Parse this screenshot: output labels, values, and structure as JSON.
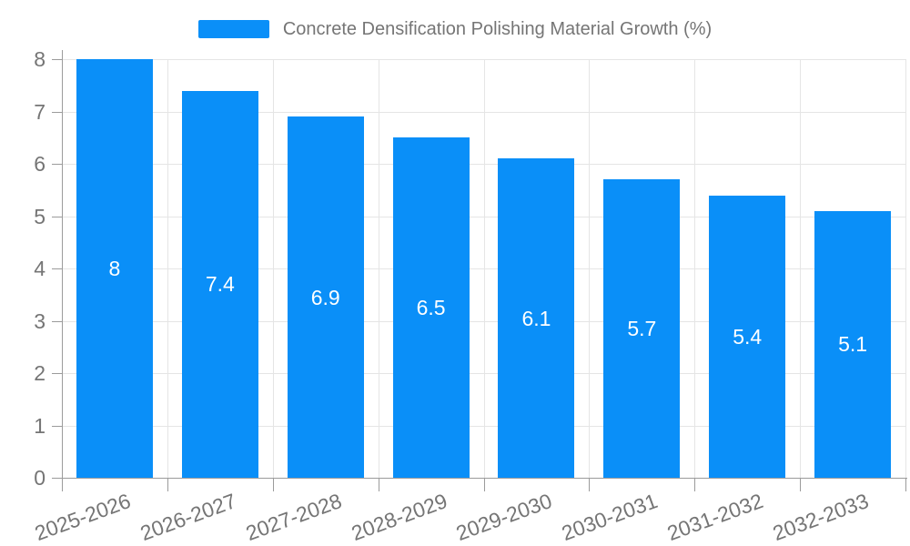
{
  "colors": {
    "bar": "#0a8ff8",
    "grid_line": "#e5e5e5",
    "axis_line": "#9b9b9b",
    "tick_line": "#9b9b9b",
    "axis_text": "#757575",
    "legend_text": "#757575",
    "bar_label_text": "#ffffff",
    "background": "#ffffff"
  },
  "chart_data": {
    "type": "bar",
    "title": "Concrete Densification Polishing Material Growth (%)",
    "categories": [
      "2025-2026",
      "2026-2027",
      "2027-2028",
      "2028-2029",
      "2029-2030",
      "2030-2031",
      "2031-2032",
      "2032-2033"
    ],
    "values": [
      8,
      7.4,
      6.9,
      6.5,
      6.1,
      5.7,
      5.4,
      5.1
    ],
    "value_labels": [
      "8",
      "7.4",
      "6.9",
      "6.5",
      "6.1",
      "5.7",
      "5.4",
      "5.1"
    ],
    "xlabel": "",
    "ylabel": "",
    "ylim": [
      0,
      8
    ],
    "yticks": [
      0,
      1,
      2,
      3,
      4,
      5,
      6,
      7,
      8
    ],
    "grid": true,
    "legend_position": "top",
    "bar_value_labels_inside": true,
    "x_label_rotation_deg": -20
  }
}
